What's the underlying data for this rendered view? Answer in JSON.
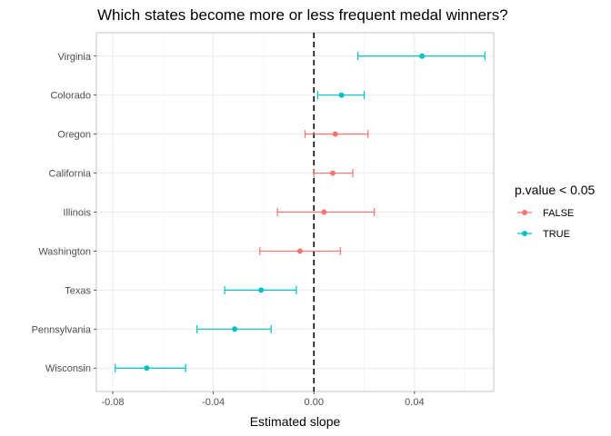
{
  "chart_data": {
    "type": "scatter",
    "title": "Which states become more or less frequent medal winners?",
    "xlabel": "Estimated slope",
    "ylabel": "",
    "xlim": [
      -0.0865,
      0.0715
    ],
    "x_ticks": [
      -0.08,
      -0.04,
      0.0,
      0.04
    ],
    "x_tick_labels": [
      "-0.08",
      "-0.04",
      "0.00",
      "0.04"
    ],
    "reference_line": {
      "x": 0,
      "style": "dashed"
    },
    "grid": true,
    "legend": {
      "title": "p.value < 0.05",
      "position": "right",
      "entries": [
        {
          "label": "FALSE",
          "color": "#F8766D"
        },
        {
          "label": "TRUE",
          "color": "#00BFC4"
        }
      ]
    },
    "categories": [
      "Virginia",
      "Colorado",
      "Oregon",
      "California",
      "Illinois",
      "Washington",
      "Texas",
      "Pennsylvania",
      "Wisconsin"
    ],
    "points": [
      {
        "state": "Virginia",
        "estimate": 0.043,
        "conf_low": 0.0175,
        "conf_high": 0.068,
        "significant": "TRUE"
      },
      {
        "state": "Colorado",
        "estimate": 0.011,
        "conf_low": 0.0015,
        "conf_high": 0.02,
        "significant": "TRUE"
      },
      {
        "state": "Oregon",
        "estimate": 0.0085,
        "conf_low": -0.0035,
        "conf_high": 0.0215,
        "significant": "FALSE"
      },
      {
        "state": "California",
        "estimate": 0.0075,
        "conf_low": 0.0,
        "conf_high": 0.0155,
        "significant": "FALSE"
      },
      {
        "state": "Illinois",
        "estimate": 0.004,
        "conf_low": -0.0145,
        "conf_high": 0.024,
        "significant": "FALSE"
      },
      {
        "state": "Washington",
        "estimate": -0.0055,
        "conf_low": -0.0215,
        "conf_high": 0.0105,
        "significant": "FALSE"
      },
      {
        "state": "Texas",
        "estimate": -0.021,
        "conf_low": -0.0355,
        "conf_high": -0.007,
        "significant": "TRUE"
      },
      {
        "state": "Pennsylvania",
        "estimate": -0.0315,
        "conf_low": -0.0465,
        "conf_high": -0.017,
        "significant": "TRUE"
      },
      {
        "state": "Wisconsin",
        "estimate": -0.0665,
        "conf_low": -0.079,
        "conf_high": -0.051,
        "significant": "TRUE"
      }
    ]
  }
}
